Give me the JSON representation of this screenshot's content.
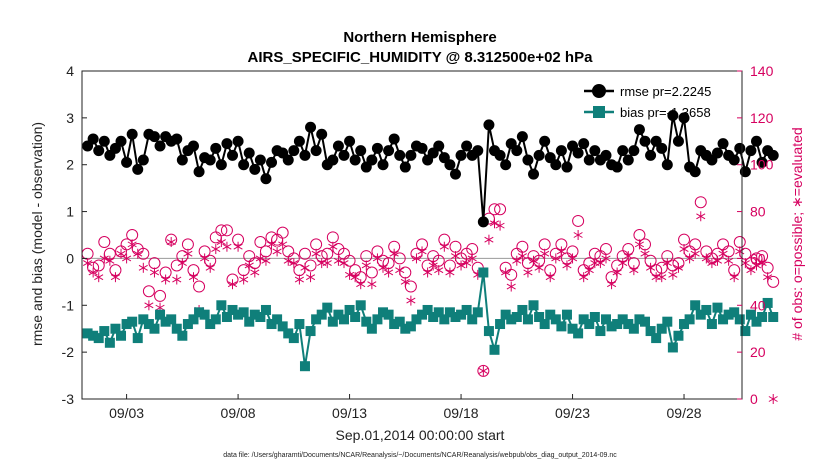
{
  "colors": {
    "rmse": "#000000",
    "bias": "#0f7f7a",
    "obs": "#d6005f",
    "axis": "#222222",
    "grid": "#e0e0e0"
  },
  "chart_data": {
    "type": "line",
    "title": "Northern Hemisphere",
    "subtitle": "AIRS_SPECIFIC_HUMIDITY @ 8.312500e+02 hPa",
    "xlabel": "Sep.01,2014 00:00:00 start",
    "ylabel": "rmse and bias (model - observation)",
    "y2label": "# of obs: o=possible; ∗=evaluated",
    "footer": "data file: /Users/gharamti/Documents/NCAR/Reanalysis/~/Documents/NCAR/Reanalysis/webpub/obs_diag_output_2014-09.nc",
    "xlim": [
      1.0,
      30.6
    ],
    "ylim": [
      -3,
      4
    ],
    "y2lim": [
      0,
      140
    ],
    "xticks": [
      3,
      8,
      13,
      18,
      23,
      28
    ],
    "xtick_labels": [
      "09/03",
      "09/08",
      "09/13",
      "09/18",
      "09/23",
      "09/28"
    ],
    "yticks": [
      -3,
      -2,
      -1,
      0,
      1,
      2,
      3,
      4
    ],
    "y2ticks": [
      0,
      20,
      40,
      60,
      80,
      100,
      120,
      140
    ],
    "legend_position": "top-right",
    "series": [
      {
        "name": "rmse",
        "legend": "rmse pr=2.2245",
        "axis": "left",
        "values": [
          2.4,
          2.55,
          2.3,
          2.5,
          2.2,
          2.35,
          2.5,
          2.05,
          2.65,
          1.9,
          2.1,
          2.65,
          2.6,
          2.4,
          2.6,
          2.5,
          2.55,
          2.1,
          2.3,
          2.4,
          1.85,
          2.15,
          2.1,
          2.35,
          2.0,
          2.45,
          2.2,
          2.5,
          2.0,
          2.25,
          1.9,
          2.1,
          1.7,
          2.05,
          2.3,
          2.25,
          2.1,
          2.3,
          2.5,
          2.2,
          2.8,
          2.3,
          2.65,
          2.0,
          2.1,
          2.4,
          2.2,
          2.5,
          2.1,
          2.3,
          1.95,
          2.1,
          2.35,
          2.0,
          2.3,
          2.55,
          2.2,
          1.95,
          2.2,
          2.4,
          2.35,
          2.1,
          2.25,
          2.4,
          2.15,
          2.0,
          1.8,
          2.2,
          2.4,
          2.2,
          2.3,
          0.78,
          2.85,
          2.3,
          2.2,
          2.0,
          2.45,
          2.3,
          2.6,
          2.1,
          1.8,
          2.2,
          2.5,
          2.15,
          2.0,
          2.3,
          1.95,
          2.4,
          2.25,
          2.45,
          2.1,
          2.3,
          2.1,
          2.2,
          2.0,
          1.95,
          2.3,
          2.1,
          2.3,
          2.75,
          2.5,
          2.2,
          2.5,
          2.35,
          2.0,
          3.05,
          2.5,
          3.0,
          1.95,
          1.85,
          2.3,
          2.2,
          2.1,
          2.25,
          2.45,
          2.2,
          2.1,
          2.35,
          1.85,
          2.3,
          2.5,
          2.05,
          2.3,
          2.2
        ]
      },
      {
        "name": "bias",
        "legend": "bias pr=-1.3658",
        "axis": "left",
        "values": [
          -1.6,
          -1.65,
          -1.7,
          -1.55,
          -1.8,
          -1.5,
          -1.65,
          -1.4,
          -1.35,
          -1.7,
          -1.3,
          -1.4,
          -1.5,
          -1.2,
          -1.35,
          -1.3,
          -1.5,
          -1.65,
          -1.4,
          -1.3,
          -1.15,
          -1.2,
          -1.4,
          -1.3,
          -1.0,
          -1.25,
          -1.1,
          -1.2,
          -1.15,
          -1.35,
          -1.2,
          -1.25,
          -1.1,
          -1.4,
          -1.3,
          -1.45,
          -1.6,
          -1.7,
          -1.4,
          -2.3,
          -1.55,
          -1.3,
          -1.2,
          -1.05,
          -1.35,
          -1.2,
          -1.3,
          -1.1,
          -1.25,
          -1.0,
          -1.35,
          -1.5,
          -1.3,
          -1.15,
          -1.2,
          -1.4,
          -1.35,
          -1.5,
          -1.45,
          -1.3,
          -1.2,
          -1.1,
          -1.25,
          -1.15,
          -1.3,
          -1.15,
          -1.25,
          -1.2,
          -1.1,
          -1.3,
          -1.15,
          -0.3,
          -1.55,
          -1.95,
          -1.4,
          -1.2,
          -1.3,
          -1.25,
          -1.1,
          -1.3,
          -1.0,
          -1.25,
          -1.4,
          -1.2,
          -1.3,
          -1.45,
          -1.2,
          -1.5,
          -1.6,
          -1.3,
          -1.4,
          -1.25,
          -1.55,
          -1.3,
          -1.45,
          -1.4,
          -1.3,
          -1.4,
          -1.5,
          -1.3,
          -1.35,
          -1.55,
          -1.7,
          -1.5,
          -1.35,
          -1.9,
          -1.65,
          -1.4,
          -1.3,
          -1.0,
          -1.2,
          -1.1,
          -1.4,
          -1.05,
          -1.3,
          -1.2,
          -1.15,
          -1.3,
          -1.55,
          -1.2,
          -1.35,
          -1.25,
          -0.95,
          -1.25
        ]
      },
      {
        "name": "obs possible",
        "axis": "right",
        "values": [
          62,
          56,
          57,
          67,
          62,
          55,
          63,
          66,
          70,
          64,
          62,
          46,
          58,
          44,
          54,
          68,
          57,
          61,
          66,
          55,
          48,
          63,
          59,
          69,
          72,
          72,
          51,
          68,
          55,
          61,
          58,
          67,
          63,
          69,
          68,
          71,
          63,
          60,
          55,
          62,
          57,
          66,
          61,
          62,
          69,
          64,
          62,
          59,
          55,
          52,
          61,
          54,
          63,
          59,
          58,
          65,
          60,
          54,
          48,
          62,
          66,
          57,
          61,
          59,
          68,
          57,
          65,
          60,
          62,
          64,
          56,
          12,
          77,
          81,
          81,
          56,
          53,
          62,
          65,
          58,
          61,
          59,
          66,
          55,
          62,
          66,
          60,
          63,
          76,
          55,
          58,
          62,
          61,
          64,
          52,
          57,
          61,
          64,
          58,
          70,
          66,
          59,
          55,
          56,
          61,
          57,
          58,
          68,
          63,
          66,
          84,
          63,
          60,
          62,
          66,
          63,
          55,
          67,
          62,
          58,
          60,
          61,
          56,
          50
        ]
      },
      {
        "name": "obs evaluated",
        "axis": "right",
        "values": [
          58,
          54,
          52,
          60,
          59,
          52,
          62,
          60,
          66,
          62,
          56,
          40,
          54,
          39,
          51,
          67,
          51,
          58,
          62,
          52,
          38,
          60,
          56,
          64,
          67,
          65,
          49,
          65,
          51,
          57,
          54,
          60,
          59,
          66,
          63,
          66,
          59,
          58,
          51,
          56,
          52,
          62,
          58,
          58,
          65,
          59,
          58,
          53,
          52,
          49,
          57,
          49,
          60,
          56,
          54,
          62,
          55,
          50,
          42,
          60,
          63,
          54,
          57,
          55,
          65,
          54,
          61,
          57,
          58,
          60,
          53,
          12,
          68,
          75,
          74,
          54,
          48,
          59,
          61,
          54,
          59,
          56,
          62,
          52,
          60,
          63,
          57,
          60,
          70,
          52,
          55,
          58,
          58,
          60,
          49,
          54,
          58,
          61,
          55,
          66,
          62,
          56,
          52,
          52,
          58,
          53,
          56,
          64,
          60,
          62,
          78,
          60,
          58,
          59,
          62,
          59,
          52,
          63,
          58,
          55,
          57,
          58,
          52,
          0
        ]
      }
    ]
  }
}
